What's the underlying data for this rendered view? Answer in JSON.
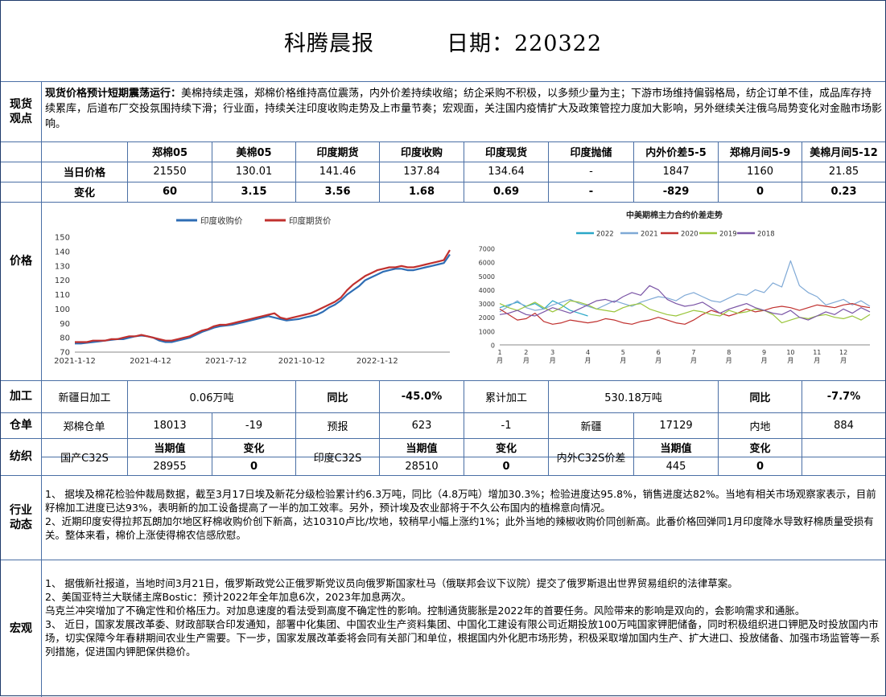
{
  "header": {
    "title": "科腾晨报",
    "date_label": "日期：220322"
  },
  "sections": {
    "spot": "现货\n观点",
    "price": "价格",
    "processing": "加工",
    "warehouse": "仓单",
    "textile": "纺织",
    "industry": "行业\n动态",
    "macro": "宏观"
  },
  "spot_view": {
    "lead": "现货价格预计短期震荡运行：",
    "body": "美棉持续走强，郑棉价格维持高位震荡，内外价差持续收缩；纺企采购不积极，以多频少量为主；下游市场维持偏弱格局，纺企订单不佳，成品库存持续累库，后道布厂交投氛围持续下滑；行业面，持续关注印度收购走势及上市量节奏；宏观面，关注国内疫情扩大及政策管控力度加大影响，另外继续关注俄乌局势变化对金融市场影响。"
  },
  "price_table": {
    "headers": [
      "郑棉05",
      "美棉05",
      "印度期货",
      "印度收购",
      "印度现货",
      "印度抛储",
      "内外价差5-5",
      "郑棉月间5-9",
      "美棉月间5-12"
    ],
    "row1_label": "当日价格",
    "row1": [
      "21550",
      "130.01",
      "141.46",
      "137.84",
      "134.64",
      "-",
      "1847",
      "1160",
      "21.85"
    ],
    "row2_label": "变化",
    "row2": [
      "60",
      "3.15",
      "3.56",
      "1.68",
      "0.69",
      "-",
      "-829",
      "0",
      "0.23"
    ]
  },
  "chart_data": [
    {
      "type": "line",
      "legend": [
        "印度收购价",
        "印度期货价"
      ],
      "colors": [
        "#2e6db4",
        "#c0302e"
      ],
      "ylim": [
        70,
        150
      ],
      "yticks": [
        70,
        80,
        90,
        100,
        110,
        120,
        130,
        140,
        150
      ],
      "xticks": [
        "2021-1-12",
        "2021-4-12",
        "2021-7-12",
        "2021-10-12",
        "2022-1-12"
      ],
      "x_index_range": [
        0,
        62
      ],
      "xtick_index": [
        0,
        12.5,
        25,
        37.5,
        50
      ],
      "series": [
        {
          "name": "印度收购价",
          "values": [
            76,
            76,
            76.5,
            77,
            77.5,
            78,
            78.5,
            79,
            79,
            80,
            81,
            81.5,
            81,
            80,
            78,
            77,
            77,
            78,
            79,
            80,
            82,
            84,
            85.5,
            87,
            88,
            88.5,
            89,
            90,
            91,
            92,
            93,
            94,
            95,
            94,
            93,
            92,
            92.5,
            93,
            94,
            95,
            96,
            98,
            101,
            103,
            106,
            110,
            113,
            116,
            120,
            122,
            124,
            126,
            127,
            128,
            128,
            127,
            127,
            128,
            129,
            130,
            131,
            132,
            138
          ]
        },
        {
          "name": "印度期货价",
          "values": [
            77,
            77,
            77,
            78,
            78,
            78,
            79,
            79,
            80,
            81,
            81,
            82,
            81,
            80,
            79,
            78,
            78,
            79,
            80,
            81,
            83,
            85,
            86,
            88,
            89,
            89,
            90,
            91,
            92,
            93,
            94,
            95,
            96,
            97,
            94,
            93,
            94,
            95,
            96,
            97,
            99,
            101,
            103,
            105,
            108,
            113,
            117,
            120,
            123,
            125,
            127,
            128,
            129,
            129,
            130,
            129,
            129,
            130,
            131,
            132,
            133,
            134,
            141
          ]
        }
      ]
    },
    {
      "type": "line",
      "title": "中美期棉主力合约价差走势",
      "legend": [
        "2022",
        "2021",
        "2020",
        "2019",
        "2018"
      ],
      "colors": [
        "#2aa7c8",
        "#7fa9d6",
        "#c0302e",
        "#9ac53b",
        "#7b55a6"
      ],
      "ylim": [
        0,
        7000
      ],
      "yticks": [
        0,
        1000,
        2000,
        3000,
        4000,
        5000,
        6000,
        7000
      ],
      "xticks": [
        "1\n月",
        "2\n月",
        "3\n月",
        "4\n月",
        "5\n月",
        "6\n月",
        "7\n月",
        "8\n月",
        "9\n月",
        "10\n月",
        "11\n月",
        "12\n月"
      ],
      "xtick_index": [
        0,
        3,
        6,
        10,
        14,
        18,
        22,
        26,
        30,
        33,
        36,
        39
      ],
      "x_index_range": [
        0,
        42
      ],
      "series": [
        {
          "name": "2022",
          "values": [
            2700,
            2900,
            3100,
            2800,
            3000,
            2600,
            3200,
            2900,
            2500,
            2300,
            2100
          ]
        },
        {
          "name": "2021",
          "values": [
            2400,
            2800,
            3200,
            2700,
            2500,
            2600,
            2900,
            3100,
            3300,
            3000,
            2800,
            2600,
            2900,
            3200,
            3000,
            2800,
            3100,
            3300,
            3500,
            3400,
            3200,
            3600,
            3800,
            3500,
            3200,
            3100,
            3400,
            3700,
            3600,
            4000,
            3800,
            4500,
            4200,
            6100,
            4300,
            3800,
            3500,
            2900,
            3100,
            3300,
            2900,
            3200,
            2800
          ]
        },
        {
          "name": "2020",
          "values": [
            2600,
            2200,
            1800,
            1900,
            2300,
            1700,
            1500,
            1600,
            1800,
            1700,
            1600,
            1700,
            1900,
            1800,
            1600,
            1500,
            1700,
            1800,
            2000,
            1800,
            1600,
            1500,
            1800,
            2200,
            2500,
            2300,
            2100,
            2300,
            2600,
            2400,
            2500,
            2700,
            2800,
            2700,
            2500,
            2700,
            2900,
            2800,
            2700,
            2900,
            3000,
            2800,
            2700
          ]
        },
        {
          "name": "2019",
          "values": [
            3000,
            2700,
            2500,
            2800,
            3100,
            2700,
            2400,
            2700,
            3200,
            3100,
            2900,
            2600,
            2500,
            2400,
            2700,
            2900,
            3000,
            2600,
            2400,
            2200,
            2100,
            2300,
            2500,
            2400,
            2200,
            2100,
            2500,
            2300,
            2400,
            2600,
            2500,
            2200,
            1600,
            1800,
            2000,
            1900,
            2100,
            2200,
            2000,
            1900,
            2100,
            1800,
            2200
          ]
        },
        {
          "name": "2018",
          "values": [
            2200,
            2300,
            2500,
            2200,
            2100,
            2400,
            2700,
            2500,
            2300,
            2600,
            2900,
            3200,
            3300,
            3100,
            3500,
            3800,
            3600,
            4300,
            4000,
            3300,
            3000,
            2800,
            2900,
            3100,
            2700,
            2300,
            2600,
            2800,
            3000,
            2700,
            2500,
            2300,
            2200,
            2500,
            2000,
            1800,
            2100,
            2400,
            2200,
            2600,
            2300,
            2700,
            2400
          ]
        }
      ]
    }
  ],
  "processing": {
    "xinjiang_label": "新疆日加工",
    "xinjiang_value": "0.06万吨",
    "yoy1_label": "同比",
    "yoy1_value": "-45.0%",
    "cumulative_label": "累计加工",
    "cumulative_value": "530.18万吨",
    "yoy2_label": "同比",
    "yoy2_value": "-7.7%"
  },
  "warehouse": {
    "items": [
      "郑棉仓单",
      "18013",
      "-19",
      "预报",
      "623",
      "-1",
      "新疆",
      "17129",
      "内地",
      "884"
    ]
  },
  "textile": {
    "g1_label": "国产C32S",
    "g1_cur_label": "当期值",
    "g1_chg_label": "变化",
    "g1_cur": "28955",
    "g1_chg": "0",
    "g2_label": "印度C32S",
    "g2_cur_label": "当期值",
    "g2_chg_label": "变化",
    "g2_cur": "28510",
    "g2_chg": "0",
    "g3_label": "内外C32S价差",
    "g3_cur_label": "当期值",
    "g3_chg_label": "变化",
    "g3_cur": "445",
    "g3_chg": "0"
  },
  "industry": {
    "p1": "1、 据埃及棉花检验仲裁局数据，截至3月17日埃及新花分级检验累计约6.3万吨，同比（4.8万吨）增加30.3%；检验进度达95.8%，销售进度达82%。当地有相关市场观察家表示，目前籽棉加工进度已达93%，表明新的加工设备提高了一半的加工效率。另外，预计埃及农业部将于不久公布国内的植棉意向情况。",
    "p2": "2、近期印度安得拉邦瓦朗加尔地区籽棉收购价创下新高，达10310卢比/坎地，较稍早小幅上涨约1%；此外当地的辣椒收购价同创新高。此番价格回弹同1月印度降水导致籽棉质量受损有关。整体来看，棉价上涨使得棉农信感欣慰。"
  },
  "macro": {
    "p1": "1、 据俄新社报道，当地时间3月21日，俄罗斯政党公正俄罗斯党议员向俄罗斯国家杜马（俄联邦会议下议院）提交了俄罗斯退出世界贸易组织的法律草案。",
    "p2": "2、美国亚特兰大联储主席Bostic：预计2022年全年加息6次，2023年加息两次。",
    "p3": "乌克兰冲突增加了不确定性和价格压力。对加息速度的看法受到高度不确定性的影响。控制通货膨胀是2022年的首要任务。风险带来的影响是双向的，会影响需求和通胀。",
    "p4": "3、 近日，国家发展改革委、财政部联合印发通知，部署中化集团、中国农业生产资料集团、中国化工建设有限公司近期投放100万吨国家钾肥储备，同时积极组织进口钾肥及时投放国内市场，切实保障今年春耕期间农业生产需要。下一步，国家发展改革委将会同有关部门和单位，根据国内外化肥市场形势，积极采取增加国内生产、扩大进口、投放储备、加强市场监管等一系列措施，促进国内钾肥保供稳价。"
  }
}
